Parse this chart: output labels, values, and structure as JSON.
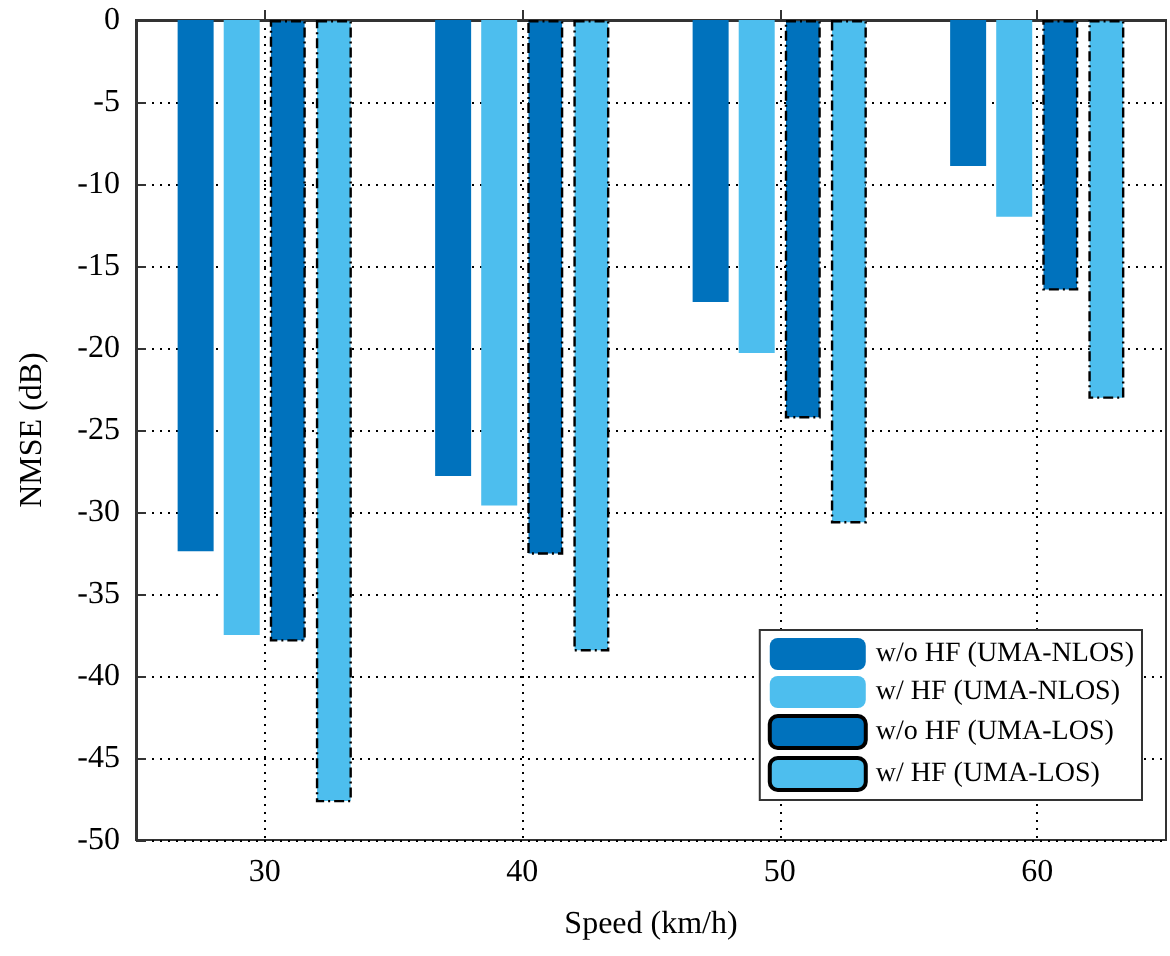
{
  "chart_data": {
    "type": "bar",
    "xlabel": "Speed (km/h)",
    "ylabel": "NMSE (dB)",
    "x": [
      30,
      40,
      50,
      60
    ],
    "xlim": [
      25,
      65
    ],
    "xticks": [
      30,
      40,
      50,
      60
    ],
    "ylim": [
      -50,
      0
    ],
    "yticks": [
      -50,
      -45,
      -40,
      -35,
      -30,
      -25,
      -20,
      -15,
      -10,
      -5,
      0
    ],
    "grid": true,
    "legend": "bottom right",
    "series": [
      {
        "name": "w/o HF (UMA-NLOS)",
        "color": "#0072bd",
        "values": [
          -32.4,
          -27.8,
          -17.2,
          -8.9
        ]
      },
      {
        "name": "w/ HF (UMA-NLOS)",
        "color": "#4dbeee",
        "values": [
          -37.5,
          -29.6,
          -20.3,
          -12.0
        ]
      },
      {
        "name": "w/o HF (UMA-LOS)",
        "color": "#0072bd",
        "line_style": "dashed",
        "values": [
          -37.9,
          -32.6,
          -24.3,
          -16.5
        ]
      },
      {
        "name": "w/ HF (UMA-LOS)",
        "color": "#4dbeee",
        "line_style": "dashed",
        "values": [
          -47.7,
          -38.5,
          -30.7,
          -23.1
        ]
      }
    ]
  }
}
